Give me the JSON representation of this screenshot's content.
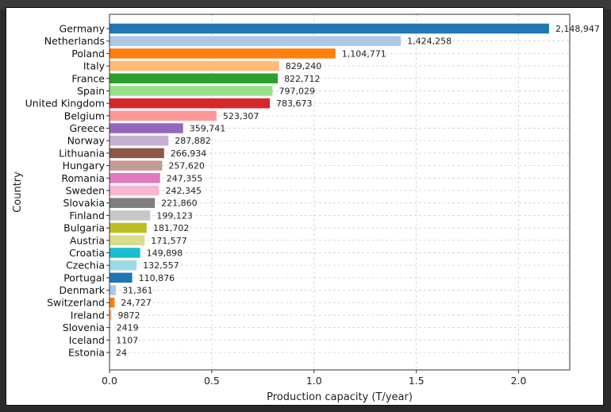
{
  "chart_data": {
    "type": "bar",
    "orientation": "horizontal",
    "title": "",
    "xlabel": "Production capacity (T/year)",
    "ylabel": "Country",
    "xlim": [
      0,
      2250000
    ],
    "x_ticks": [
      0,
      500000,
      1000000,
      1500000,
      2000000
    ],
    "x_tick_labels": [
      "0.0",
      "0.5",
      "1.0",
      "1.5",
      "2.0"
    ],
    "grid": true,
    "categories": [
      "Germany",
      "Netherlands",
      "Poland",
      "Italy",
      "France",
      "Spain",
      "United Kingdom",
      "Belgium",
      "Greece",
      "Norway",
      "Lithuania",
      "Hungary",
      "Romania",
      "Sweden",
      "Slovakia",
      "Finland",
      "Bulgaria",
      "Austria",
      "Croatia",
      "Czechia",
      "Portugal",
      "Denmark",
      "Switzerland",
      "Ireland",
      "Slovenia",
      "Iceland",
      "Estonia"
    ],
    "values": [
      2148947,
      1424258,
      1104771,
      829240,
      822712,
      797029,
      783673,
      523307,
      359741,
      287882,
      266934,
      257620,
      247355,
      242345,
      221860,
      199123,
      181702,
      171577,
      149898,
      132557,
      110876,
      31361,
      24727,
      9872,
      2419,
      1107,
      24
    ],
    "value_labels": [
      "2,148,947",
      "1,424,258",
      "1,104,771",
      "829,240",
      "822,712",
      "797,029",
      "783,673",
      "523,307",
      "359,741",
      "287,882",
      "266,934",
      "257,620",
      "247,355",
      "242,345",
      "221,860",
      "199,123",
      "181,702",
      "171,577",
      "149,898",
      "132,557",
      "110,876",
      "31,361",
      "24,727",
      "9872",
      "2419",
      "1107",
      "24"
    ],
    "colors": [
      "#1f77b4",
      "#aec7e8",
      "#ff7f0e",
      "#ffbb78",
      "#2ca02c",
      "#98df8a",
      "#d62728",
      "#ff9896",
      "#9467bd",
      "#c5b0d5",
      "#8c564b",
      "#c49c94",
      "#e377c2",
      "#f7b6d2",
      "#7f7f7f",
      "#c7c7c7",
      "#bcbd22",
      "#dbdb8d",
      "#17becf",
      "#9edae5",
      "#1f77b4",
      "#aec7e8",
      "#ff7f0e",
      "#ffbb78",
      "#2ca02c",
      "#98df8a",
      "#d62728"
    ]
  }
}
